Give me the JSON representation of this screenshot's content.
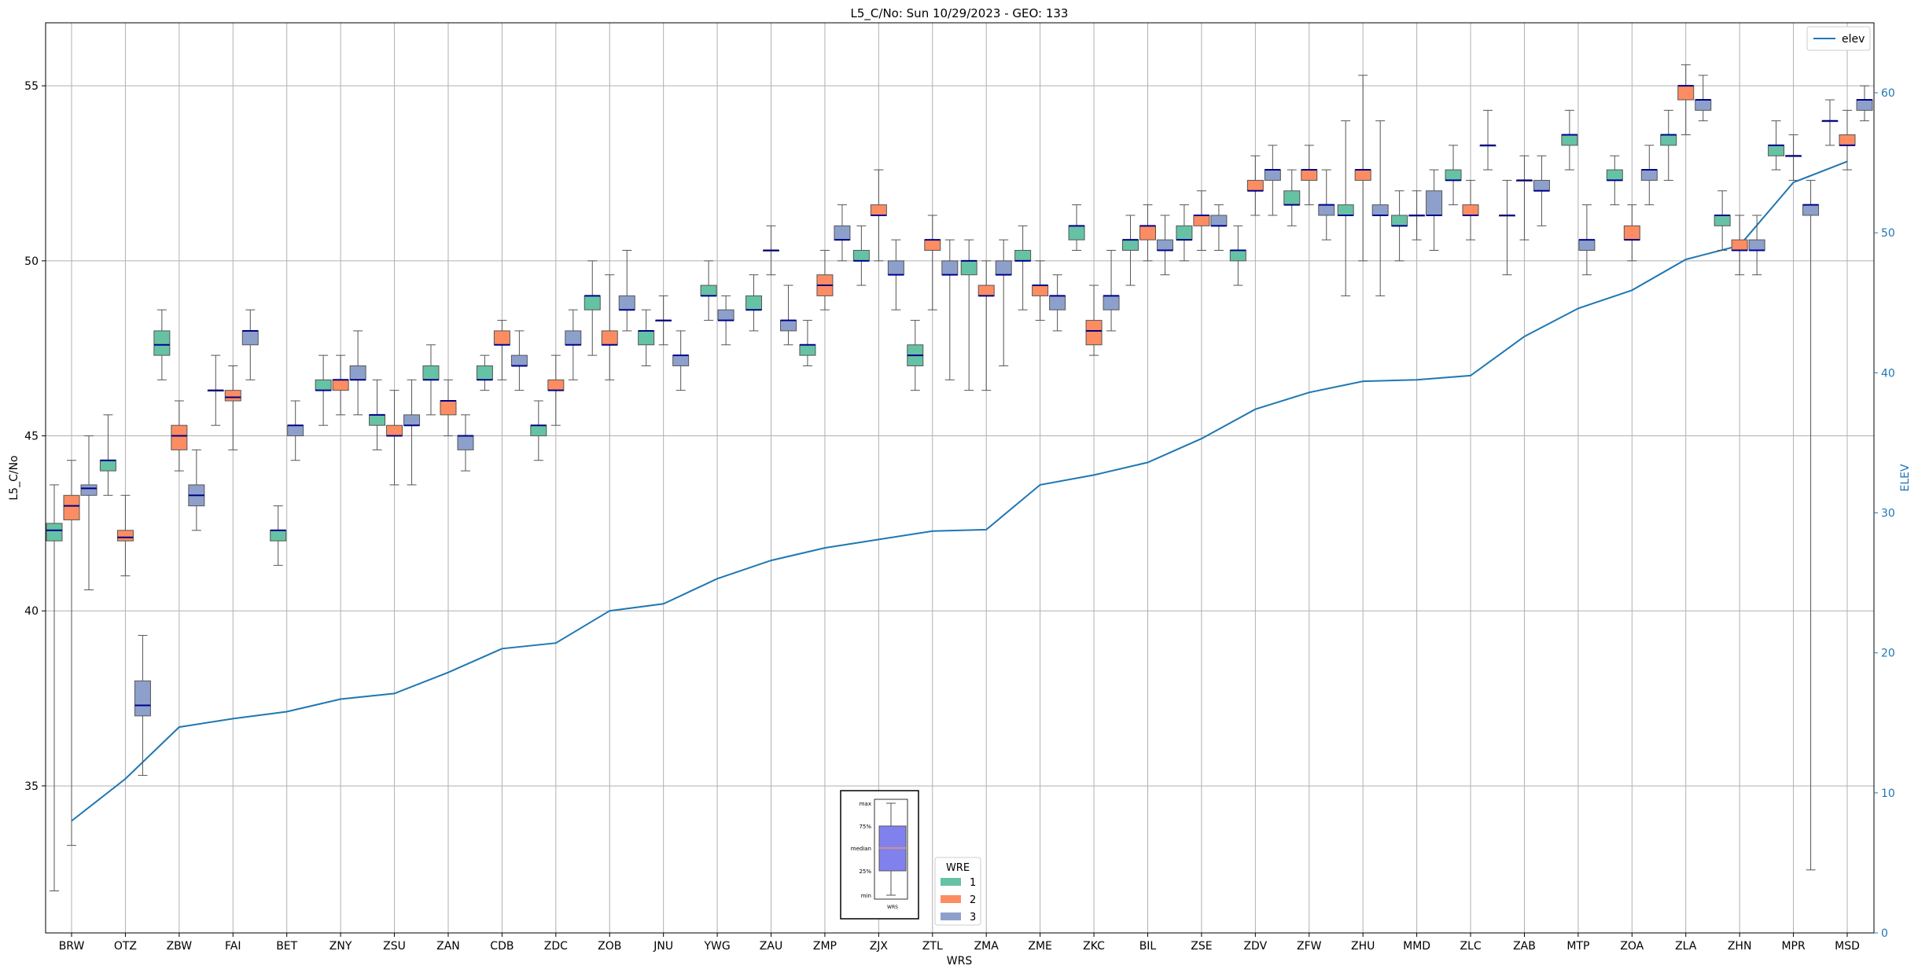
{
  "chart_data": {
    "type": "box",
    "title": "L5_C/No: Sun 10/29/2023 - GEO: 133",
    "xlabel": "WRS",
    "ylabel": "L5_C/No",
    "y2label": "ELEV",
    "ylim": [
      30.8,
      56.8
    ],
    "y2lim": [
      0,
      65
    ],
    "yticks": [
      35,
      40,
      45,
      50,
      55
    ],
    "y2ticks": [
      0,
      10,
      20,
      30,
      40,
      50,
      60
    ],
    "grid": true,
    "categories": [
      "BRW",
      "OTZ",
      "ZBW",
      "FAI",
      "BET",
      "ZNY",
      "ZSU",
      "ZAN",
      "CDB",
      "ZDC",
      "ZOB",
      "JNU",
      "YWG",
      "ZAU",
      "ZMP",
      "ZJX",
      "ZTL",
      "ZMA",
      "ZME",
      "ZKC",
      "BIL",
      "ZSE",
      "ZDV",
      "ZFW",
      "ZHU",
      "MMD",
      "ZLC",
      "ZAB",
      "MTP",
      "ZOA",
      "ZLA",
      "ZHN",
      "MPR",
      "MSD"
    ],
    "series_colors": {
      "1": "#66c2a5",
      "2": "#fc8d62",
      "3": "#8da0cb"
    },
    "median_color": "#00008b",
    "boxes": [
      {
        "cat": "BRW",
        "wre": 1,
        "min": 32.0,
        "q1": 42.0,
        "median": 42.3,
        "q3": 42.5,
        "max": 43.6
      },
      {
        "cat": "BRW",
        "wre": 2,
        "min": 33.3,
        "q1": 42.6,
        "median": 43.0,
        "q3": 43.3,
        "max": 44.3
      },
      {
        "cat": "BRW",
        "wre": 3,
        "min": 40.6,
        "q1": 43.3,
        "median": 43.5,
        "q3": 43.6,
        "max": 45.0
      },
      {
        "cat": "OTZ",
        "wre": 1,
        "min": 43.3,
        "q1": 44.0,
        "median": 44.3,
        "q3": 44.3,
        "max": 45.6
      },
      {
        "cat": "OTZ",
        "wre": 2,
        "min": 41.0,
        "q1": 42.0,
        "median": 42.1,
        "q3": 42.3,
        "max": 43.3
      },
      {
        "cat": "OTZ",
        "wre": 3,
        "min": 35.3,
        "q1": 37.0,
        "median": 37.3,
        "q3": 38.0,
        "max": 39.3
      },
      {
        "cat": "ZBW",
        "wre": 1,
        "min": 46.6,
        "q1": 47.3,
        "median": 47.6,
        "q3": 48.0,
        "max": 48.6
      },
      {
        "cat": "ZBW",
        "wre": 2,
        "min": 44.0,
        "q1": 44.6,
        "median": 45.0,
        "q3": 45.3,
        "max": 46.0
      },
      {
        "cat": "ZBW",
        "wre": 3,
        "min": 42.3,
        "q1": 43.0,
        "median": 43.3,
        "q3": 43.6,
        "max": 44.6
      },
      {
        "cat": "FAI",
        "wre": 1,
        "min": 45.3,
        "q1": 46.3,
        "median": 46.3,
        "q3": 46.3,
        "max": 47.3
      },
      {
        "cat": "FAI",
        "wre": 2,
        "min": 44.6,
        "q1": 46.0,
        "median": 46.1,
        "q3": 46.3,
        "max": 47.0
      },
      {
        "cat": "FAI",
        "wre": 3,
        "min": 46.6,
        "q1": 47.6,
        "median": 48.0,
        "q3": 48.0,
        "max": 48.6
      },
      {
        "cat": "BET",
        "wre": 1,
        "min": 41.3,
        "q1": 42.0,
        "median": 42.3,
        "q3": 42.3,
        "max": 43.0
      },
      {
        "cat": "BET",
        "wre": 3,
        "min": 44.3,
        "q1": 45.0,
        "median": 45.3,
        "q3": 45.3,
        "max": 46.0
      },
      {
        "cat": "ZNY",
        "wre": 1,
        "min": 45.3,
        "q1": 46.3,
        "median": 46.3,
        "q3": 46.6,
        "max": 47.3
      },
      {
        "cat": "ZNY",
        "wre": 2,
        "min": 45.6,
        "q1": 46.3,
        "median": 46.6,
        "q3": 46.6,
        "max": 47.3
      },
      {
        "cat": "ZNY",
        "wre": 3,
        "min": 45.6,
        "q1": 46.6,
        "median": 46.6,
        "q3": 47.0,
        "max": 48.0
      },
      {
        "cat": "ZSU",
        "wre": 1,
        "min": 44.6,
        "q1": 45.3,
        "median": 45.6,
        "q3": 45.6,
        "max": 46.6
      },
      {
        "cat": "ZSU",
        "wre": 2,
        "min": 43.6,
        "q1": 45.0,
        "median": 45.0,
        "q3": 45.3,
        "max": 46.3
      },
      {
        "cat": "ZSU",
        "wre": 3,
        "min": 43.6,
        "q1": 45.3,
        "median": 45.3,
        "q3": 45.6,
        "max": 46.6
      },
      {
        "cat": "ZAN",
        "wre": 1,
        "min": 45.6,
        "q1": 46.6,
        "median": 46.6,
        "q3": 47.0,
        "max": 47.6
      },
      {
        "cat": "ZAN",
        "wre": 2,
        "min": 45.0,
        "q1": 45.6,
        "median": 46.0,
        "q3": 46.0,
        "max": 46.6
      },
      {
        "cat": "ZAN",
        "wre": 3,
        "min": 44.0,
        "q1": 44.6,
        "median": 45.0,
        "q3": 45.0,
        "max": 45.6
      },
      {
        "cat": "CDB",
        "wre": 1,
        "min": 46.3,
        "q1": 46.6,
        "median": 46.6,
        "q3": 47.0,
        "max": 47.3
      },
      {
        "cat": "CDB",
        "wre": 2,
        "min": 46.6,
        "q1": 47.6,
        "median": 47.6,
        "q3": 48.0,
        "max": 48.3
      },
      {
        "cat": "CDB",
        "wre": 3,
        "min": 46.3,
        "q1": 47.0,
        "median": 47.0,
        "q3": 47.3,
        "max": 48.0
      },
      {
        "cat": "ZDC",
        "wre": 1,
        "min": 44.3,
        "q1": 45.0,
        "median": 45.3,
        "q3": 45.3,
        "max": 46.0
      },
      {
        "cat": "ZDC",
        "wre": 2,
        "min": 45.3,
        "q1": 46.3,
        "median": 46.3,
        "q3": 46.6,
        "max": 47.3
      },
      {
        "cat": "ZDC",
        "wre": 3,
        "min": 46.6,
        "q1": 47.6,
        "median": 47.6,
        "q3": 48.0,
        "max": 48.6
      },
      {
        "cat": "ZOB",
        "wre": 1,
        "min": 47.3,
        "q1": 48.6,
        "median": 49.0,
        "q3": 49.0,
        "max": 50.0
      },
      {
        "cat": "ZOB",
        "wre": 2,
        "min": 46.6,
        "q1": 47.6,
        "median": 47.6,
        "q3": 48.0,
        "max": 49.6
      },
      {
        "cat": "ZOB",
        "wre": 3,
        "min": 48.0,
        "q1": 48.6,
        "median": 48.6,
        "q3": 49.0,
        "max": 50.3
      },
      {
        "cat": "JNU",
        "wre": 1,
        "min": 47.0,
        "q1": 47.6,
        "median": 48.0,
        "q3": 48.0,
        "max": 48.6
      },
      {
        "cat": "JNU",
        "wre": 3,
        "min": 47.6,
        "q1": 48.3,
        "median": 48.3,
        "q3": 48.3,
        "max": 49.0
      },
      {
        "cat": "JNU",
        "wre": 3,
        "min": 46.3,
        "q1": 47.0,
        "median": 47.3,
        "q3": 47.3,
        "max": 48.0
      },
      {
        "cat": "YWG",
        "wre": 1,
        "min": 48.3,
        "q1": 49.0,
        "median": 49.0,
        "q3": 49.3,
        "max": 50.0
      },
      {
        "cat": "YWG",
        "wre": 3,
        "min": 47.6,
        "q1": 48.3,
        "median": 48.3,
        "q3": 48.6,
        "max": 49.0
      },
      {
        "cat": "ZAU",
        "wre": 1,
        "min": 48.0,
        "q1": 48.6,
        "median": 48.6,
        "q3": 49.0,
        "max": 49.6
      },
      {
        "cat": "ZAU",
        "wre": 3,
        "min": 49.6,
        "q1": 50.3,
        "median": 50.3,
        "q3": 50.3,
        "max": 51.0
      },
      {
        "cat": "ZAU",
        "wre": 3,
        "min": 47.6,
        "q1": 48.0,
        "median": 48.3,
        "q3": 48.3,
        "max": 49.3
      },
      {
        "cat": "ZMP",
        "wre": 1,
        "min": 47.0,
        "q1": 47.3,
        "median": 47.6,
        "q3": 47.6,
        "max": 48.3
      },
      {
        "cat": "ZMP",
        "wre": 2,
        "min": 48.6,
        "q1": 49.0,
        "median": 49.3,
        "q3": 49.6,
        "max": 50.3
      },
      {
        "cat": "ZMP",
        "wre": 3,
        "min": 50.0,
        "q1": 50.6,
        "median": 50.6,
        "q3": 51.0,
        "max": 51.6
      },
      {
        "cat": "ZJX",
        "wre": 1,
        "min": 49.3,
        "q1": 50.0,
        "median": 50.0,
        "q3": 50.3,
        "max": 51.0
      },
      {
        "cat": "ZJX",
        "wre": 2,
        "min": 50.0,
        "q1": 51.3,
        "median": 51.3,
        "q3": 51.6,
        "max": 52.6
      },
      {
        "cat": "ZJX",
        "wre": 3,
        "min": 48.6,
        "q1": 49.6,
        "median": 49.6,
        "q3": 50.0,
        "max": 50.6
      },
      {
        "cat": "ZTL",
        "wre": 1,
        "min": 46.3,
        "q1": 47.0,
        "median": 47.3,
        "q3": 47.6,
        "max": 48.3
      },
      {
        "cat": "ZTL",
        "wre": 2,
        "min": 48.6,
        "q1": 50.3,
        "median": 50.6,
        "q3": 50.6,
        "max": 51.3
      },
      {
        "cat": "ZTL",
        "wre": 3,
        "min": 46.6,
        "q1": 49.6,
        "median": 49.6,
        "q3": 50.0,
        "max": 50.6
      },
      {
        "cat": "ZMA",
        "wre": 1,
        "min": 46.3,
        "q1": 49.6,
        "median": 50.0,
        "q3": 50.0,
        "max": 50.6
      },
      {
        "cat": "ZMA",
        "wre": 2,
        "min": 46.3,
        "q1": 49.0,
        "median": 49.0,
        "q3": 49.3,
        "max": 50.0
      },
      {
        "cat": "ZMA",
        "wre": 3,
        "min": 47.0,
        "q1": 49.6,
        "median": 49.6,
        "q3": 50.0,
        "max": 50.6
      },
      {
        "cat": "ZME",
        "wre": 1,
        "min": 48.6,
        "q1": 50.0,
        "median": 50.0,
        "q3": 50.3,
        "max": 51.0
      },
      {
        "cat": "ZME",
        "wre": 2,
        "min": 48.3,
        "q1": 49.0,
        "median": 49.3,
        "q3": 49.3,
        "max": 50.0
      },
      {
        "cat": "ZME",
        "wre": 3,
        "min": 48.0,
        "q1": 48.6,
        "median": 49.0,
        "q3": 49.0,
        "max": 49.6
      },
      {
        "cat": "ZKC",
        "wre": 1,
        "min": 50.3,
        "q1": 50.6,
        "median": 51.0,
        "q3": 51.0,
        "max": 51.6
      },
      {
        "cat": "ZKC",
        "wre": 2,
        "min": 47.3,
        "q1": 47.6,
        "median": 48.0,
        "q3": 48.3,
        "max": 49.3
      },
      {
        "cat": "ZKC",
        "wre": 3,
        "min": 48.0,
        "q1": 48.6,
        "median": 49.0,
        "q3": 49.0,
        "max": 50.3
      },
      {
        "cat": "BIL",
        "wre": 1,
        "min": 49.3,
        "q1": 50.3,
        "median": 50.6,
        "q3": 50.6,
        "max": 51.3
      },
      {
        "cat": "BIL",
        "wre": 2,
        "min": 50.0,
        "q1": 50.6,
        "median": 51.0,
        "q3": 51.0,
        "max": 51.6
      },
      {
        "cat": "BIL",
        "wre": 3,
        "min": 49.6,
        "q1": 50.3,
        "median": 50.3,
        "q3": 50.6,
        "max": 51.3
      },
      {
        "cat": "ZSE",
        "wre": 1,
        "min": 50.0,
        "q1": 50.6,
        "median": 50.6,
        "q3": 51.0,
        "max": 51.6
      },
      {
        "cat": "ZSE",
        "wre": 2,
        "min": 50.3,
        "q1": 51.0,
        "median": 51.3,
        "q3": 51.3,
        "max": 52.0
      },
      {
        "cat": "ZSE",
        "wre": 3,
        "min": 50.3,
        "q1": 51.0,
        "median": 51.0,
        "q3": 51.3,
        "max": 51.6
      },
      {
        "cat": "ZDV",
        "wre": 1,
        "min": 49.3,
        "q1": 50.0,
        "median": 50.3,
        "q3": 50.3,
        "max": 51.0
      },
      {
        "cat": "ZDV",
        "wre": 2,
        "min": 51.3,
        "q1": 52.0,
        "median": 52.0,
        "q3": 52.3,
        "max": 53.0
      },
      {
        "cat": "ZDV",
        "wre": 3,
        "min": 51.3,
        "q1": 52.3,
        "median": 52.6,
        "q3": 52.6,
        "max": 53.3
      },
      {
        "cat": "ZFW",
        "wre": 1,
        "min": 51.0,
        "q1": 51.6,
        "median": 51.6,
        "q3": 52.0,
        "max": 52.6
      },
      {
        "cat": "ZFW",
        "wre": 2,
        "min": 51.6,
        "q1": 52.3,
        "median": 52.6,
        "q3": 52.6,
        "max": 53.3
      },
      {
        "cat": "ZFW",
        "wre": 3,
        "min": 50.6,
        "q1": 51.3,
        "median": 51.6,
        "q3": 51.6,
        "max": 52.6
      },
      {
        "cat": "ZHU",
        "wre": 1,
        "min": 49.0,
        "q1": 51.3,
        "median": 51.3,
        "q3": 51.6,
        "max": 54.0
      },
      {
        "cat": "ZHU",
        "wre": 2,
        "min": 50.0,
        "q1": 52.3,
        "median": 52.6,
        "q3": 52.6,
        "max": 55.3
      },
      {
        "cat": "ZHU",
        "wre": 3,
        "min": 49.0,
        "q1": 51.3,
        "median": 51.3,
        "q3": 51.6,
        "max": 54.0
      },
      {
        "cat": "MMD",
        "wre": 1,
        "min": 50.0,
        "q1": 51.0,
        "median": 51.0,
        "q3": 51.3,
        "max": 52.0
      },
      {
        "cat": "MMD",
        "wre": 3,
        "min": 50.6,
        "q1": 51.3,
        "median": 51.3,
        "q3": 51.3,
        "max": 52.0
      },
      {
        "cat": "MMD",
        "wre": 3,
        "min": 50.3,
        "q1": 51.3,
        "median": 51.3,
        "q3": 52.0,
        "max": 52.6
      },
      {
        "cat": "ZLC",
        "wre": 1,
        "min": 51.6,
        "q1": 52.3,
        "median": 52.3,
        "q3": 52.6,
        "max": 53.3
      },
      {
        "cat": "ZLC",
        "wre": 2,
        "min": 50.6,
        "q1": 51.3,
        "median": 51.3,
        "q3": 51.6,
        "max": 52.3
      },
      {
        "cat": "ZLC",
        "wre": 3,
        "min": 52.6,
        "q1": 53.3,
        "median": 53.3,
        "q3": 53.3,
        "max": 54.3
      },
      {
        "cat": "ZAB",
        "wre": 1,
        "min": 49.6,
        "q1": 51.3,
        "median": 51.3,
        "q3": 51.3,
        "max": 52.3
      },
      {
        "cat": "ZAB",
        "wre": 3,
        "min": 50.6,
        "q1": 52.3,
        "median": 52.3,
        "q3": 52.3,
        "max": 53.0
      },
      {
        "cat": "ZAB",
        "wre": 3,
        "min": 51.0,
        "q1": 52.0,
        "median": 52.0,
        "q3": 52.3,
        "max": 53.0
      },
      {
        "cat": "MTP",
        "wre": 1,
        "min": 52.6,
        "q1": 53.3,
        "median": 53.6,
        "q3": 53.6,
        "max": 54.3
      },
      {
        "cat": "MTP",
        "wre": 3,
        "min": 49.6,
        "q1": 50.3,
        "median": 50.6,
        "q3": 50.6,
        "max": 51.6
      },
      {
        "cat": "ZOA",
        "wre": 1,
        "min": 51.6,
        "q1": 52.3,
        "median": 52.3,
        "q3": 52.6,
        "max": 53.0
      },
      {
        "cat": "ZOA",
        "wre": 2,
        "min": 50.0,
        "q1": 50.6,
        "median": 50.6,
        "q3": 51.0,
        "max": 51.6
      },
      {
        "cat": "ZOA",
        "wre": 3,
        "min": 51.6,
        "q1": 52.3,
        "median": 52.6,
        "q3": 52.6,
        "max": 53.3
      },
      {
        "cat": "ZLA",
        "wre": 1,
        "min": 52.3,
        "q1": 53.3,
        "median": 53.6,
        "q3": 53.6,
        "max": 54.3
      },
      {
        "cat": "ZLA",
        "wre": 2,
        "min": 53.6,
        "q1": 54.6,
        "median": 55.0,
        "q3": 55.0,
        "max": 55.6
      },
      {
        "cat": "ZLA",
        "wre": 3,
        "min": 54.0,
        "q1": 54.3,
        "median": 54.6,
        "q3": 54.6,
        "max": 55.3
      },
      {
        "cat": "ZHN",
        "wre": 1,
        "min": 50.3,
        "q1": 51.0,
        "median": 51.3,
        "q3": 51.3,
        "max": 52.0
      },
      {
        "cat": "ZHN",
        "wre": 2,
        "min": 49.6,
        "q1": 50.3,
        "median": 50.3,
        "q3": 50.6,
        "max": 51.3
      },
      {
        "cat": "ZHN",
        "wre": 3,
        "min": 49.6,
        "q1": 50.3,
        "median": 50.3,
        "q3": 50.6,
        "max": 51.3
      },
      {
        "cat": "MPR",
        "wre": 1,
        "min": 52.6,
        "q1": 53.0,
        "median": 53.3,
        "q3": 53.3,
        "max": 54.0
      },
      {
        "cat": "MPR",
        "wre": 3,
        "min": 52.3,
        "q1": 53.0,
        "median": 53.0,
        "q3": 53.0,
        "max": 53.6
      },
      {
        "cat": "MPR",
        "wre": 3,
        "min": 32.6,
        "q1": 51.3,
        "median": 51.6,
        "q3": 51.6,
        "max": 52.3
      },
      {
        "cat": "MSD",
        "wre": 2,
        "min": 53.3,
        "q1": 54.0,
        "median": 54.0,
        "q3": 54.0,
        "max": 54.6
      },
      {
        "cat": "MSD",
        "wre": 2,
        "min": 52.6,
        "q1": 53.3,
        "median": 53.3,
        "q3": 53.6,
        "max": 54.3
      },
      {
        "cat": "MSD",
        "wre": 3,
        "min": 54.0,
        "q1": 54.3,
        "median": 54.6,
        "q3": 54.6,
        "max": 55.0
      }
    ],
    "elevation": {
      "name": "elev",
      "color": "#1f77b4",
      "values": [
        8,
        11,
        14.7,
        15.3,
        15.8,
        16.7,
        17.1,
        18.6,
        20.3,
        20.7,
        23,
        23.5,
        25.3,
        26.6,
        27.5,
        28.1,
        28.7,
        28.8,
        32,
        32.7,
        33.6,
        35.3,
        37.4,
        38.6,
        39.4,
        39.5,
        39.8,
        42.6,
        44.6,
        45.9,
        48.1,
        49.1,
        53.6,
        55.1
      ]
    },
    "legend_elev": {
      "label": "elev",
      "placement": "top-right"
    },
    "legend_wre": {
      "title": "WRE",
      "entries": [
        "1",
        "2",
        "3"
      ],
      "placement": "bottom-center"
    },
    "key_box": {
      "labels": [
        "max",
        "75%",
        "median",
        "25%",
        "min"
      ],
      "xlabel": "WRS"
    }
  }
}
